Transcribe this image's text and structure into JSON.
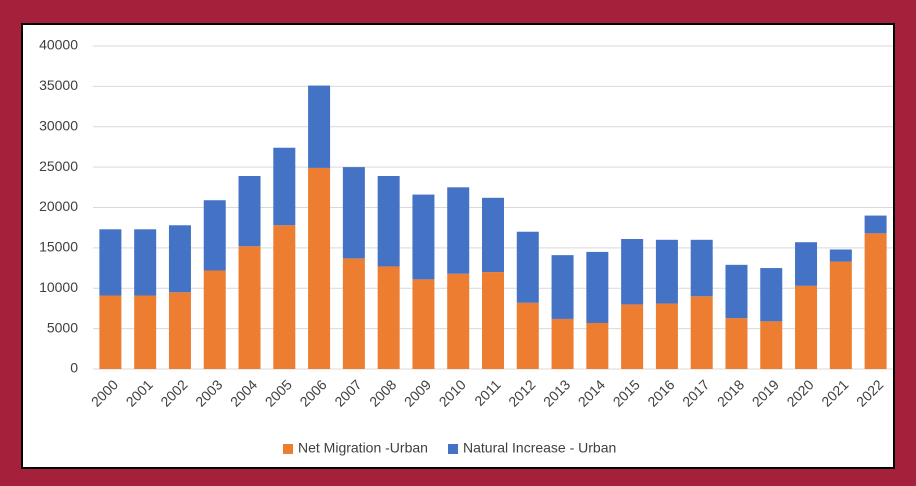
{
  "chart_data": {
    "type": "stacked_bar",
    "categories": [
      "2000",
      "2001",
      "2002",
      "2003",
      "2004",
      "2005",
      "2006",
      "2007",
      "2008",
      "2009",
      "2010",
      "2011",
      "2012",
      "2013",
      "2014",
      "2015",
      "2016",
      "2017",
      "2018",
      "2019",
      "2020",
      "2021",
      "2022"
    ],
    "series": [
      {
        "name": "Net Migration -Urban",
        "color": "#ed7d31",
        "values": [
          9100,
          9100,
          9500,
          12200,
          15200,
          17800,
          24900,
          13700,
          12700,
          11100,
          11800,
          12000,
          8200,
          6200,
          5700,
          8000,
          8100,
          9000,
          6300,
          5900,
          10300,
          13300,
          16800
        ]
      },
      {
        "name": "Natural Increase - Urban",
        "color": "#4472c4",
        "values": [
          8200,
          8200,
          8300,
          8700,
          8700,
          9600,
          10200,
          11300,
          11200,
          10500,
          10700,
          9200,
          8800,
          7900,
          8800,
          8100,
          7900,
          7000,
          6600,
          6600,
          5400,
          1500,
          2200
        ]
      }
    ],
    "ylim": [
      0,
      40000
    ],
    "yticks": [
      0,
      5000,
      10000,
      15000,
      20000,
      25000,
      30000,
      35000,
      40000
    ],
    "grid": true,
    "legend": "bottom"
  }
}
